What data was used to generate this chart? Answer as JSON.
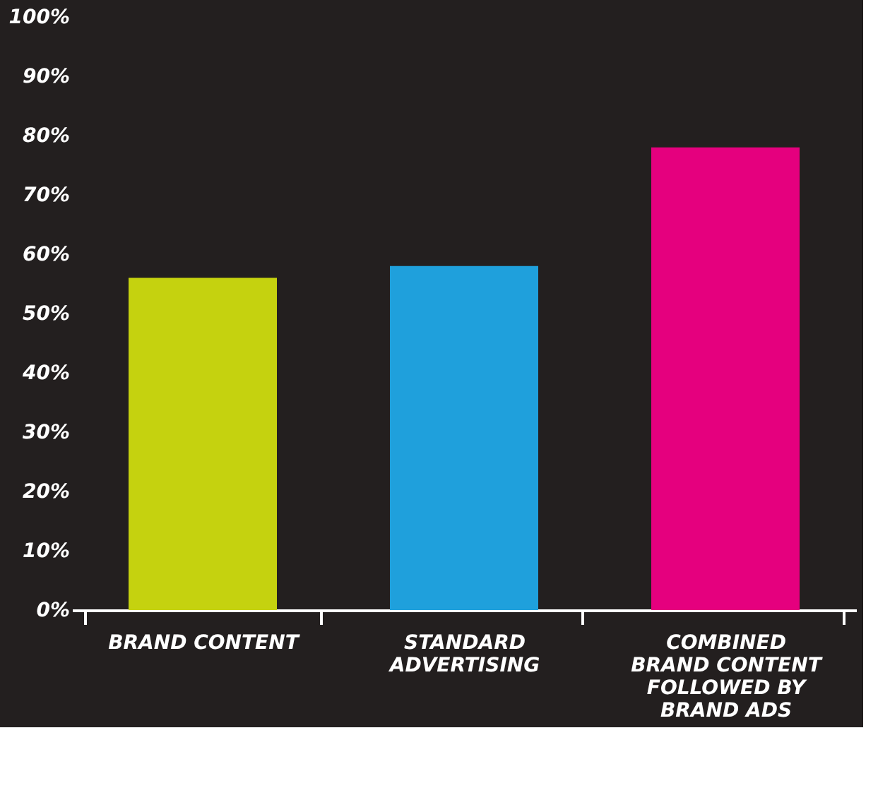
{
  "chart_data": {
    "type": "bar",
    "categories": [
      "BRAND CONTENT",
      "STANDARD ADVERTISING",
      "COMBINED BRAND CONTENT FOLLOWED BY BRAND ADS"
    ],
    "values": [
      56,
      58,
      78
    ],
    "colors": [
      "#c5d20f",
      "#1fa0dc",
      "#e5007e"
    ],
    "ylim": [
      0,
      100
    ],
    "yticks": [
      {
        "value": 0,
        "label": "0%"
      },
      {
        "value": 10,
        "label": "10%"
      },
      {
        "value": 20,
        "label": "20%"
      },
      {
        "value": 30,
        "label": "30%"
      },
      {
        "value": 40,
        "label": "40%"
      },
      {
        "value": 50,
        "label": "50%"
      },
      {
        "value": 60,
        "label": "60%"
      },
      {
        "value": 70,
        "label": "70%"
      },
      {
        "value": 80,
        "label": "80%"
      },
      {
        "value": 90,
        "label": "90%"
      },
      {
        "value": 100,
        "label": "100%"
      }
    ],
    "grid": false
  }
}
